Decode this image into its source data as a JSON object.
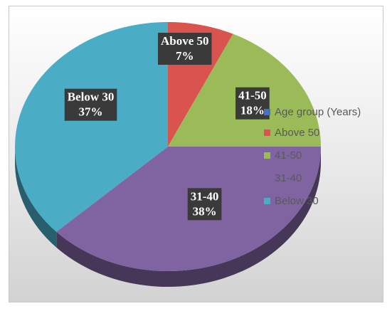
{
  "chart_data": {
    "type": "pie",
    "title": "",
    "legend": {
      "placement": "right",
      "entries": [
        {
          "label": "Age group (Years)",
          "color": "#4472C4"
        },
        {
          "label": "Above 50",
          "color": "#D9534F"
        },
        {
          "label": "41-50",
          "color": "#9BBB59"
        },
        {
          "label": "31-40",
          "color": "#8064A2"
        },
        {
          "label": "Below 30",
          "color": "#4BACC6"
        }
      ]
    },
    "slices": [
      {
        "label": "Above 50",
        "value": 7,
        "display": "7%",
        "color": "#D9534F"
      },
      {
        "label": "41-50",
        "value": 18,
        "display": "18%",
        "color": "#9BBB59"
      },
      {
        "label": "31-40",
        "value": 38,
        "display": "38%",
        "color": "#8064A2"
      },
      {
        "label": "Below 30",
        "value": 37,
        "display": "37%",
        "color": "#4BACC6"
      }
    ]
  }
}
